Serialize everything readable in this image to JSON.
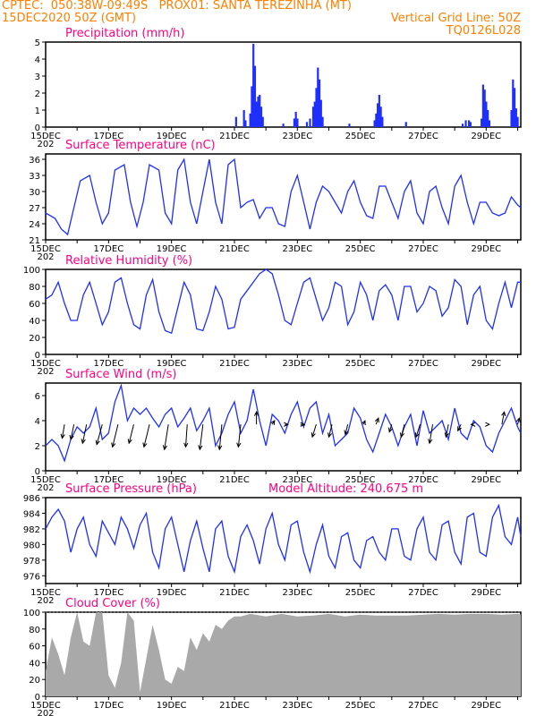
{
  "header": {
    "line1_left": "CPTEC:  050:38W-09:49S   PROX01: SANTA TEREZINHA (MT)",
    "line2_left": "15DEC2020 50Z (GMT)",
    "line2_right": "Vertical Grid Line: 50Z",
    "line3_right": "TQ0126L028"
  },
  "colors": {
    "header": "#ff7f00",
    "title": "#ff007f",
    "line": "#1f2fff",
    "bar": "#1f2fff",
    "cloud": "#a9a9a9"
  },
  "x_axis": {
    "labels": [
      "15DEC",
      "17DEC",
      "19DEC",
      "21DEC",
      "23DEC",
      "25DEC",
      "27DEC",
      "29DEC"
    ],
    "first_label_sub": "202"
  },
  "chart_data": [
    {
      "id": "precip",
      "type": "bar",
      "title": "Precipitation (mm/h)",
      "ylim": [
        0,
        5
      ],
      "yticks": [
        "0",
        "1",
        "2",
        "3",
        "4",
        "5"
      ],
      "x_range_days": [
        15,
        30.1
      ],
      "events": [
        {
          "x": 21.05,
          "y": 0.6
        },
        {
          "x": 21.3,
          "y": 1.0
        },
        {
          "x": 21.35,
          "y": 0.4
        },
        {
          "x": 21.5,
          "y": 0.8
        },
        {
          "x": 21.55,
          "y": 2.4
        },
        {
          "x": 21.6,
          "y": 4.9
        },
        {
          "x": 21.65,
          "y": 3.6
        },
        {
          "x": 21.7,
          "y": 1.5
        },
        {
          "x": 21.75,
          "y": 1.8
        },
        {
          "x": 21.8,
          "y": 1.9
        },
        {
          "x": 21.85,
          "y": 1.2
        },
        {
          "x": 21.9,
          "y": 0.6
        },
        {
          "x": 22.55,
          "y": 0.2
        },
        {
          "x": 22.9,
          "y": 0.5
        },
        {
          "x": 22.95,
          "y": 0.9
        },
        {
          "x": 23.0,
          "y": 0.5
        },
        {
          "x": 23.4,
          "y": 0.5
        },
        {
          "x": 23.5,
          "y": 1.2
        },
        {
          "x": 23.55,
          "y": 1.5
        },
        {
          "x": 23.6,
          "y": 2.3
        },
        {
          "x": 23.65,
          "y": 3.5
        },
        {
          "x": 23.7,
          "y": 2.8
        },
        {
          "x": 23.75,
          "y": 1.6
        },
        {
          "x": 23.8,
          "y": 0.6
        },
        {
          "x": 23.3,
          "y": 0.3
        },
        {
          "x": 24.65,
          "y": 0.2
        },
        {
          "x": 25.45,
          "y": 0.4
        },
        {
          "x": 25.5,
          "y": 0.8
        },
        {
          "x": 25.55,
          "y": 1.4
        },
        {
          "x": 25.6,
          "y": 1.9
        },
        {
          "x": 25.65,
          "y": 1.2
        },
        {
          "x": 25.7,
          "y": 0.6
        },
        {
          "x": 26.45,
          "y": 0.3
        },
        {
          "x": 28.25,
          "y": 0.2
        },
        {
          "x": 28.35,
          "y": 0.4
        },
        {
          "x": 28.45,
          "y": 0.4
        },
        {
          "x": 28.5,
          "y": 0.3
        },
        {
          "x": 28.85,
          "y": 0.5
        },
        {
          "x": 28.9,
          "y": 2.5
        },
        {
          "x": 28.95,
          "y": 2.2
        },
        {
          "x": 29.0,
          "y": 1.5
        },
        {
          "x": 29.05,
          "y": 1.0
        },
        {
          "x": 29.1,
          "y": 0.4
        },
        {
          "x": 29.8,
          "y": 1.0
        },
        {
          "x": 29.85,
          "y": 2.8
        },
        {
          "x": 29.9,
          "y": 2.3
        },
        {
          "x": 29.95,
          "y": 1.1
        },
        {
          "x": 30.0,
          "y": 0.6
        }
      ]
    },
    {
      "id": "temp",
      "type": "line",
      "title": "Surface Temperature (nC)",
      "ylim": [
        21,
        37
      ],
      "yticks": [
        "21",
        "24",
        "27",
        "30",
        "33",
        "36"
      ],
      "x_range_days": [
        15,
        30.1
      ],
      "x": [
        15.0,
        15.3,
        15.5,
        15.7,
        15.9,
        16.1,
        16.4,
        16.6,
        16.8,
        17.0,
        17.2,
        17.5,
        17.7,
        17.9,
        18.1,
        18.3,
        18.6,
        18.8,
        19.0,
        19.2,
        19.4,
        19.6,
        19.8,
        20.0,
        20.2,
        20.4,
        20.6,
        20.8,
        21.0,
        21.2,
        21.4,
        21.6,
        21.8,
        22.0,
        22.2,
        22.4,
        22.6,
        22.8,
        23.0,
        23.2,
        23.4,
        23.6,
        23.8,
        24.0,
        24.2,
        24.4,
        24.6,
        24.8,
        25.0,
        25.2,
        25.4,
        25.6,
        25.8,
        26.0,
        26.2,
        26.4,
        26.6,
        26.8,
        27.0,
        27.2,
        27.4,
        27.6,
        27.8,
        28.0,
        28.2,
        28.4,
        28.6,
        28.8,
        29.0,
        29.2,
        29.4,
        29.6,
        29.8,
        30.0,
        30.1
      ],
      "y": [
        26.0,
        25.0,
        23.0,
        22.0,
        27.0,
        32.0,
        33.0,
        28.0,
        24.0,
        26.0,
        34.0,
        35.0,
        28.0,
        23.5,
        28.0,
        35.0,
        34.0,
        26.0,
        24.0,
        34.0,
        36.0,
        28.0,
        24.0,
        30.0,
        36.0,
        28.0,
        24.0,
        35.0,
        36.0,
        27.0,
        28.0,
        28.5,
        25.0,
        27.0,
        27.0,
        24.0,
        23.5,
        30.0,
        33.0,
        28.0,
        23.0,
        28.0,
        31.0,
        30.0,
        28.0,
        26.0,
        30.0,
        32.0,
        28.0,
        25.5,
        25.0,
        31.0,
        31.0,
        28.0,
        25.0,
        30.0,
        32.0,
        26.0,
        24.0,
        30.0,
        31.0,
        27.0,
        24.0,
        31.0,
        33.0,
        28.0,
        24.0,
        28.0,
        28.0,
        26.0,
        25.5,
        26.0,
        29.0,
        27.5,
        27.0
      ]
    },
    {
      "id": "rh",
      "type": "line",
      "title": "Relative Humidity (%)",
      "ylim": [
        0,
        100
      ],
      "yticks": [
        "0",
        "20",
        "40",
        "60",
        "80",
        "100"
      ],
      "x_range_days": [
        15,
        30.1
      ],
      "x": [
        15.0,
        15.2,
        15.4,
        15.6,
        15.8,
        16.0,
        16.2,
        16.4,
        16.6,
        16.8,
        17.0,
        17.2,
        17.4,
        17.6,
        17.8,
        18.0,
        18.2,
        18.4,
        18.6,
        18.8,
        19.0,
        19.2,
        19.4,
        19.6,
        19.8,
        20.0,
        20.2,
        20.4,
        20.6,
        20.8,
        21.0,
        21.2,
        21.4,
        21.6,
        21.8,
        22.0,
        22.2,
        22.4,
        22.6,
        22.8,
        23.0,
        23.2,
        23.4,
        23.6,
        23.8,
        24.0,
        24.2,
        24.4,
        24.6,
        24.8,
        25.0,
        25.2,
        25.4,
        25.6,
        25.8,
        26.0,
        26.2,
        26.4,
        26.6,
        26.8,
        27.0,
        27.2,
        27.4,
        27.6,
        27.8,
        28.0,
        28.2,
        28.4,
        28.6,
        28.8,
        29.0,
        29.2,
        29.4,
        29.6,
        29.8,
        30.0,
        30.1
      ],
      "y": [
        65,
        70,
        85,
        60,
        40,
        40,
        70,
        85,
        60,
        35,
        50,
        85,
        90,
        60,
        35,
        30,
        70,
        88,
        50,
        28,
        25,
        55,
        85,
        70,
        30,
        28,
        50,
        80,
        65,
        30,
        32,
        65,
        75,
        85,
        95,
        100,
        95,
        70,
        40,
        35,
        60,
        85,
        90,
        65,
        40,
        55,
        85,
        80,
        35,
        50,
        85,
        70,
        40,
        75,
        82,
        70,
        40,
        80,
        80,
        50,
        60,
        80,
        75,
        45,
        55,
        88,
        80,
        35,
        70,
        80,
        40,
        30,
        60,
        85,
        55,
        85,
        85
      ]
    },
    {
      "id": "wind",
      "type": "line",
      "title": "Surface Wind (m/s)",
      "ylim": [
        0,
        7
      ],
      "yticks": [
        "0",
        "2",
        "4",
        "6"
      ],
      "x_range_days": [
        15,
        30.1
      ],
      "x": [
        15.0,
        15.2,
        15.4,
        15.6,
        15.8,
        16.0,
        16.2,
        16.4,
        16.6,
        16.8,
        17.0,
        17.2,
        17.4,
        17.6,
        17.8,
        18.0,
        18.2,
        18.4,
        18.6,
        18.8,
        19.0,
        19.2,
        19.4,
        19.6,
        19.8,
        20.0,
        20.2,
        20.4,
        20.6,
        20.8,
        21.0,
        21.2,
        21.4,
        21.6,
        21.8,
        22.0,
        22.2,
        22.4,
        22.6,
        22.8,
        23.0,
        23.2,
        23.4,
        23.6,
        23.8,
        24.0,
        24.2,
        24.4,
        24.6,
        24.8,
        25.0,
        25.2,
        25.4,
        25.6,
        25.8,
        26.0,
        26.2,
        26.4,
        26.6,
        26.8,
        27.0,
        27.2,
        27.4,
        27.6,
        27.8,
        28.0,
        28.2,
        28.4,
        28.6,
        28.8,
        29.0,
        29.2,
        29.4,
        29.6,
        29.8,
        30.0,
        30.1
      ],
      "y": [
        2.0,
        2.5,
        2.0,
        0.8,
        2.5,
        3.5,
        3.0,
        3.5,
        5.0,
        2.5,
        3.0,
        5.5,
        6.8,
        4.0,
        5.0,
        4.5,
        5.0,
        4.2,
        3.5,
        4.5,
        5.0,
        3.5,
        4.2,
        5.0,
        3.2,
        4.0,
        5.0,
        2.0,
        3.0,
        4.5,
        5.5,
        3.0,
        4.0,
        6.5,
        4.0,
        2.0,
        4.5,
        4.0,
        3.0,
        4.5,
        5.5,
        3.5,
        5.0,
        5.5,
        3.0,
        4.5,
        2.0,
        2.5,
        3.0,
        5.0,
        4.2,
        2.5,
        1.5,
        3.0,
        4.5,
        3.5,
        2.0,
        3.5,
        4.5,
        2.0,
        4.8,
        3.0,
        3.5,
        4.0,
        2.5,
        5.0,
        3.0,
        2.5,
        4.0,
        3.5,
        2.0,
        1.5,
        3.0,
        4.0,
        5.0,
        3.5,
        3.0
      ],
      "barb_x": [
        15.6,
        15.9,
        16.3,
        16.8,
        17.3,
        17.8,
        18.3,
        18.9,
        19.5,
        20.0,
        20.6,
        21.2,
        21.7,
        22.2,
        22.6,
        23.1,
        23.6,
        24.1,
        24.6,
        25.1,
        25.5,
        26.0,
        26.4,
        26.9,
        27.3,
        27.8,
        28.2,
        28.6,
        29.1,
        29.5,
        30.0
      ],
      "barb_y": [
        3.7,
        3.7,
        3.7,
        3.7,
        3.7,
        3.7,
        3.7,
        3.7,
        3.7,
        3.7,
        3.7,
        3.7,
        3.7,
        3.7,
        3.7,
        3.7,
        3.7,
        3.7,
        3.7,
        3.7,
        3.7,
        3.7,
        3.7,
        3.7,
        3.7,
        3.7,
        3.7,
        3.7,
        3.7,
        3.7,
        3.7
      ],
      "barb_dx": [
        -0.15,
        -0.2,
        -0.25,
        -0.35,
        -0.35,
        -0.3,
        -0.35,
        -0.25,
        -0.1,
        -0.2,
        -0.15,
        -0.15,
        0.0,
        0.15,
        0.2,
        0.25,
        -0.25,
        -0.2,
        -0.15,
        0.1,
        0.15,
        -0.15,
        -0.2,
        -0.25,
        -0.2,
        -0.15,
        -0.2,
        -0.15,
        0.0,
        0.15,
        0.1
      ],
      "barb_dy": [
        1.1,
        1.2,
        1.5,
        1.6,
        1.8,
        1.5,
        1.8,
        2.0,
        1.8,
        2.0,
        2.0,
        1.8,
        -1.0,
        -0.3,
        0.0,
        0.0,
        1.0,
        1.0,
        0.8,
        -0.3,
        -0.5,
        0.6,
        1.0,
        1.0,
        1.5,
        1.0,
        0.5,
        0.0,
        0.0,
        -1.0,
        -0.5
      ]
    },
    {
      "id": "pressure",
      "type": "line",
      "title": "Surface Pressure (hPa)",
      "annotation": "Model Altitude: 240.675 m",
      "ylim": [
        975,
        986
      ],
      "yticks": [
        "976",
        "978",
        "980",
        "982",
        "984",
        "986"
      ],
      "x_range_days": [
        15,
        30.1
      ],
      "x": [
        15.0,
        15.2,
        15.4,
        15.6,
        15.8,
        16.0,
        16.2,
        16.4,
        16.6,
        16.8,
        17.0,
        17.2,
        17.4,
        17.6,
        17.8,
        18.0,
        18.2,
        18.4,
        18.6,
        18.8,
        19.0,
        19.2,
        19.4,
        19.6,
        19.8,
        20.0,
        20.2,
        20.4,
        20.6,
        20.8,
        21.0,
        21.2,
        21.4,
        21.6,
        21.8,
        22.0,
        22.2,
        22.4,
        22.6,
        22.8,
        23.0,
        23.2,
        23.4,
        23.6,
        23.8,
        24.0,
        24.2,
        24.4,
        24.6,
        24.8,
        25.0,
        25.2,
        25.4,
        25.6,
        25.8,
        26.0,
        26.2,
        26.4,
        26.6,
        26.8,
        27.0,
        27.2,
        27.4,
        27.6,
        27.8,
        28.0,
        28.2,
        28.4,
        28.6,
        28.8,
        29.0,
        29.2,
        29.4,
        29.6,
        29.8,
        30.0,
        30.1
      ],
      "y": [
        982.0,
        983.5,
        984.5,
        983.0,
        979.0,
        982.0,
        983.5,
        980.0,
        978.5,
        983.0,
        981.5,
        980.0,
        983.5,
        982.0,
        979.5,
        982.5,
        984.0,
        979.0,
        977.0,
        982.0,
        983.5,
        980.0,
        976.5,
        980.5,
        983.0,
        979.5,
        976.5,
        982.0,
        983.0,
        978.5,
        976.5,
        981.0,
        982.5,
        980.5,
        977.5,
        982.0,
        984.0,
        980.0,
        978.0,
        982.5,
        983.0,
        979.0,
        976.5,
        980.0,
        982.5,
        978.5,
        977.0,
        981.0,
        981.5,
        978.0,
        977.0,
        980.5,
        981.0,
        979.0,
        978.0,
        982.0,
        982.0,
        978.5,
        978.0,
        982.0,
        983.5,
        979.0,
        978.0,
        982.5,
        983.0,
        979.0,
        977.5,
        983.5,
        984.0,
        979.0,
        978.5,
        983.5,
        985.0,
        981.0,
        980.0,
        983.5,
        981.0
      ]
    },
    {
      "id": "cloud",
      "type": "area",
      "title": "Cloud Cover (%)",
      "ylim": [
        0,
        100
      ],
      "yticks": [
        "0",
        "20",
        "40",
        "60",
        "80",
        "100"
      ],
      "x_range_days": [
        15,
        30.1
      ],
      "x": [
        15.0,
        15.2,
        15.4,
        15.6,
        15.8,
        16.0,
        16.2,
        16.4,
        16.6,
        16.8,
        17.0,
        17.2,
        17.4,
        17.6,
        17.8,
        18.0,
        18.2,
        18.4,
        18.6,
        18.8,
        19.0,
        19.2,
        19.4,
        19.6,
        19.8,
        20.0,
        20.2,
        20.4,
        20.6,
        20.8,
        21.0,
        21.2,
        21.5,
        22.0,
        22.5,
        23.0,
        23.5,
        24.0,
        24.5,
        25.0,
        25.5,
        26.0,
        26.5,
        27.0,
        27.5,
        28.0,
        28.5,
        29.0,
        29.5,
        30.0,
        30.1
      ],
      "y": [
        30,
        70,
        50,
        25,
        70,
        100,
        65,
        60,
        100,
        100,
        25,
        10,
        40,
        100,
        90,
        5,
        45,
        85,
        55,
        20,
        15,
        35,
        30,
        70,
        55,
        75,
        65,
        85,
        80,
        90,
        95,
        95,
        98,
        95,
        98,
        95,
        96,
        98,
        95,
        97,
        96,
        96,
        96,
        97,
        98,
        97,
        98,
        98,
        97,
        98,
        97
      ]
    }
  ]
}
